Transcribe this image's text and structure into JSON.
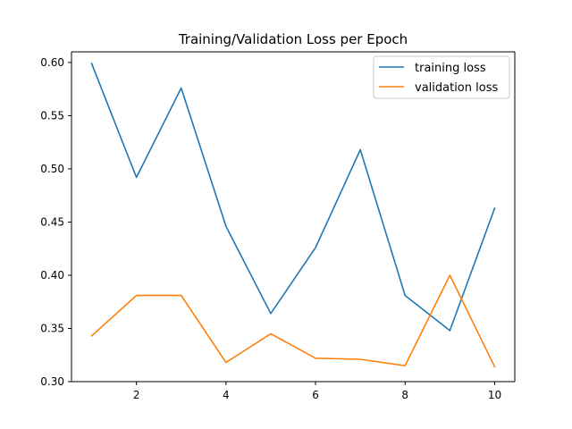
{
  "chart_data": {
    "type": "line",
    "title": "Training/Validation Loss per Epoch",
    "xlabel": "",
    "ylabel": "",
    "x": [
      1,
      2,
      3,
      4,
      5,
      6,
      7,
      8,
      9,
      10
    ],
    "xlim": [
      0.55,
      10.45
    ],
    "ylim": [
      0.3,
      0.61
    ],
    "xticks": [
      2,
      4,
      6,
      8,
      10
    ],
    "xtick_labels": [
      "2",
      "4",
      "6",
      "8",
      "10"
    ],
    "yticks": [
      0.3,
      0.35,
      0.4,
      0.45,
      0.5,
      0.55,
      0.6
    ],
    "ytick_labels": [
      "0.30",
      "0.35",
      "0.40",
      "0.45",
      "0.50",
      "0.55",
      "0.60"
    ],
    "grid": false,
    "legend_position": "top-right",
    "series": [
      {
        "name": "training loss",
        "color": "#1f77b4",
        "values": [
          0.599,
          0.492,
          0.576,
          0.446,
          0.364,
          0.426,
          0.518,
          0.381,
          0.348,
          0.463
        ]
      },
      {
        "name": "validation loss",
        "color": "#ff7f0e",
        "values": [
          0.343,
          0.381,
          0.381,
          0.318,
          0.345,
          0.322,
          0.321,
          0.315,
          0.4,
          0.314
        ]
      }
    ]
  }
}
